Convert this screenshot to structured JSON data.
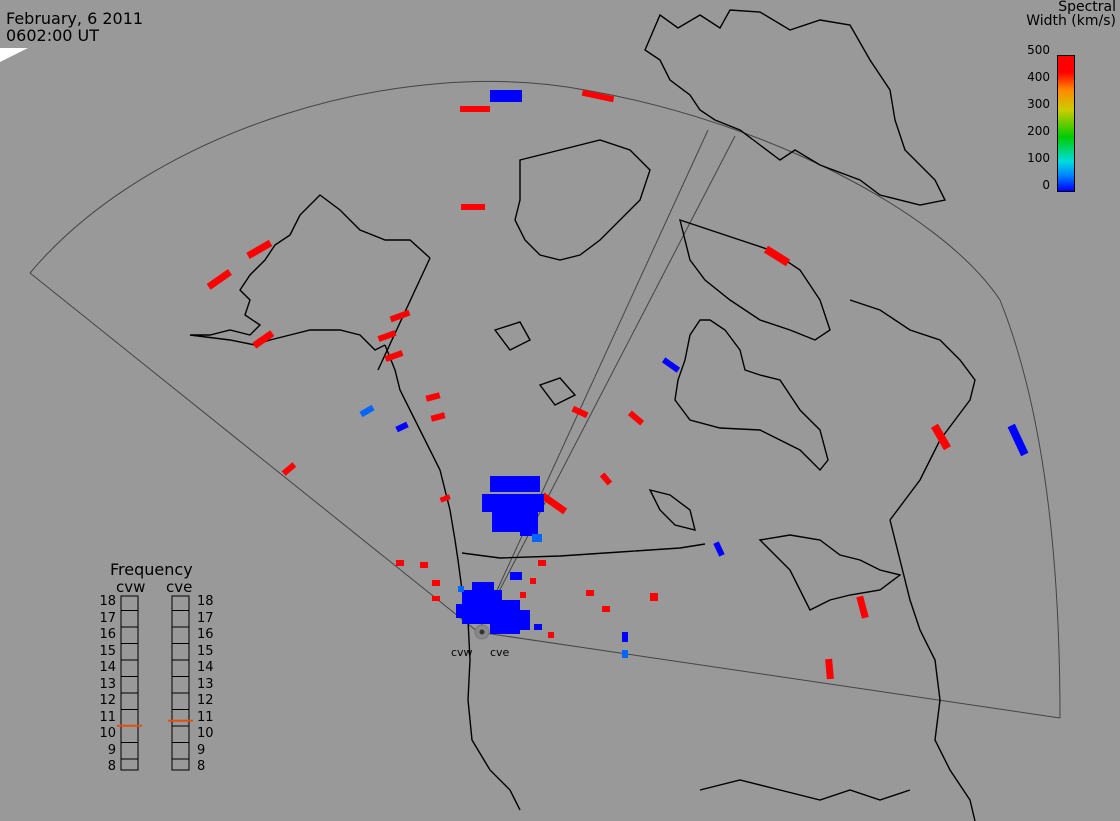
{
  "header": {
    "date": "February, 6 2011",
    "time": "0602:00 UT"
  },
  "colorbar": {
    "title_line1": "Spectral",
    "title_line2": "Width (km/s)",
    "ticks": [
      "500",
      "400",
      "300",
      "200",
      "100",
      "0"
    ],
    "range": [
      0,
      500
    ],
    "colors": [
      "#0000ff",
      "#00dddd",
      "#00cc00",
      "#cccc00",
      "#ff8800",
      "#ff0000"
    ]
  },
  "frequency_panel": {
    "title": "Frequency",
    "radar_left": "cvw",
    "radar_right": "cve",
    "scale": [
      "18",
      "17",
      "16",
      "15",
      "14",
      "13",
      "12",
      "11",
      "10",
      "9",
      "8"
    ],
    "marker_mhz_left": 10.5,
    "marker_mhz_right": 10.8,
    "marker_color": "#e05010"
  },
  "sites": {
    "west": "cvw",
    "east": "cve"
  },
  "colors": {
    "background": "#999999",
    "coast": "#000000",
    "fov": "#444444",
    "red": "#ff0000",
    "blue": "#0000ff",
    "lightblue": "#0066ff"
  }
}
